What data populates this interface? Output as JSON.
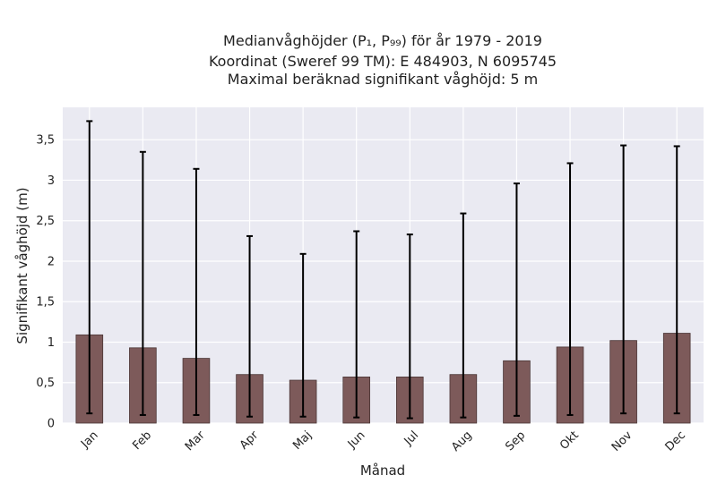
{
  "chart_data": {
    "type": "bar",
    "title_lines": [
      "Medianvåghöjder (P₁, P₉₉) för år 1979 - 2019",
      "Koordinat (Sweref 99 TM): E 484903, N 6095745",
      "Maximal beräknad signifikant våghöjd: 5 m"
    ],
    "xlabel": "Månad",
    "ylabel": "Signifikant våghöjd (m)",
    "categories": [
      "Jan",
      "Feb",
      "Mar",
      "Apr",
      "Maj",
      "Jun",
      "Jul",
      "Aug",
      "Sep",
      "Okt",
      "Nov",
      "Dec"
    ],
    "median": [
      1.09,
      0.93,
      0.8,
      0.6,
      0.53,
      0.57,
      0.57,
      0.6,
      0.77,
      0.94,
      1.02,
      1.11
    ],
    "p1": [
      0.12,
      0.1,
      0.1,
      0.08,
      0.08,
      0.07,
      0.06,
      0.07,
      0.09,
      0.1,
      0.12,
      0.12
    ],
    "p99": [
      3.73,
      3.35,
      3.14,
      2.31,
      2.09,
      2.37,
      2.33,
      2.59,
      2.96,
      3.21,
      3.43,
      3.42
    ],
    "ylim": [
      0,
      3.9
    ],
    "yticks": [
      0,
      0.5,
      1,
      1.5,
      2,
      2.5,
      3,
      3.5
    ],
    "ytick_labels": [
      "0",
      "0,5",
      "1",
      "1,5",
      "2",
      "2,5",
      "3",
      "3,5"
    ],
    "grid": true,
    "colors": {
      "bar": "#7d5a5a",
      "bar_edge": "#4a3535",
      "error": "#000000",
      "plot_bg": "#eaeaf2",
      "grid": "#ffffff"
    }
  }
}
